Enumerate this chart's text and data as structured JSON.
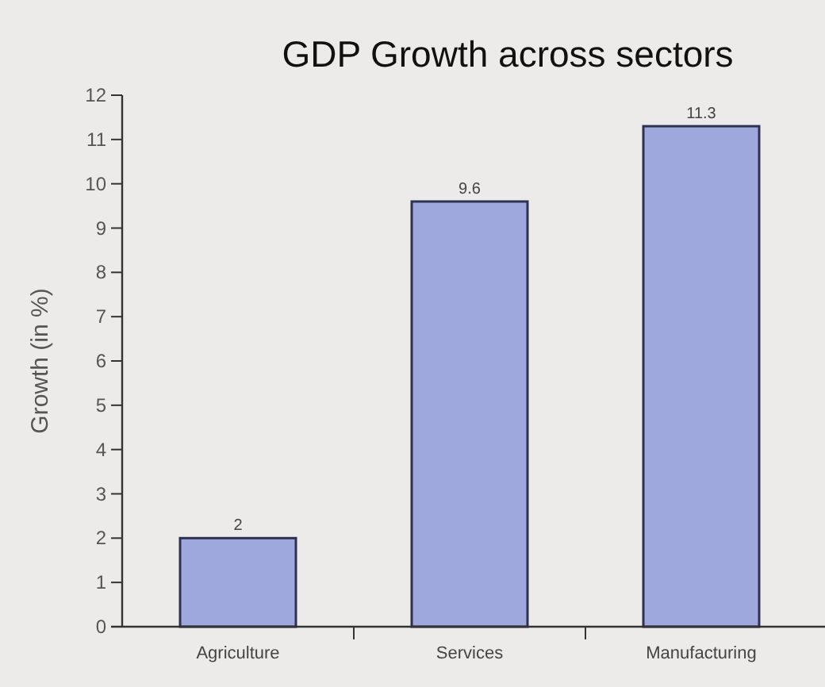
{
  "chart_data": {
    "type": "bar",
    "title": "GDP Growth across sectors",
    "ylabel": "Growth (in %)",
    "categories": [
      "Agriculture",
      "Services",
      "Manufacturing"
    ],
    "values": [
      2,
      9.6,
      11.3
    ],
    "color": "#9ea8dc",
    "ylim": [
      0,
      12
    ],
    "yticks": [
      0,
      1,
      2,
      3,
      4,
      5,
      6,
      7,
      8,
      9,
      10,
      11,
      12
    ],
    "grid": false,
    "data_labels": true
  }
}
